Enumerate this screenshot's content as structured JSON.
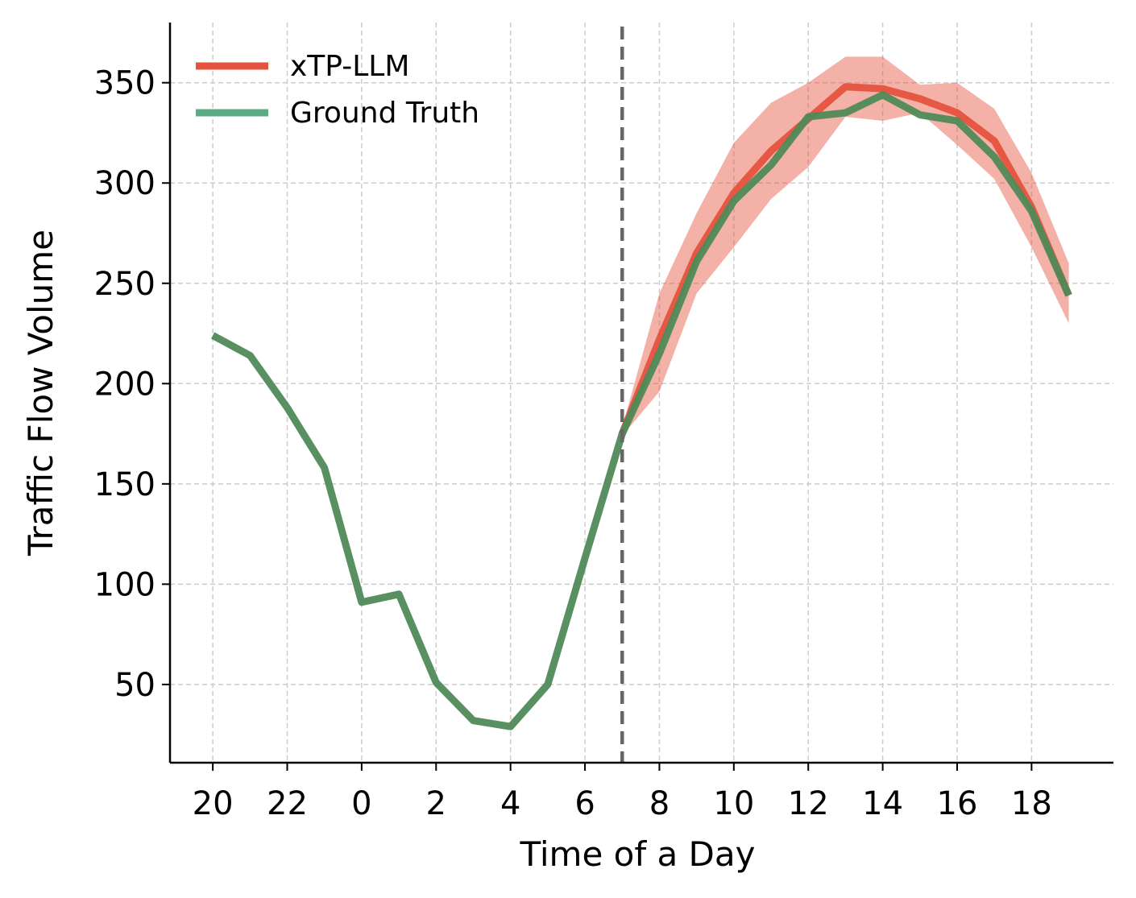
{
  "chart_data": {
    "type": "line",
    "title": "",
    "xlabel": "Time of a Day",
    "ylabel": "Traffic Flow Volume",
    "x": [
      0,
      1,
      2,
      3,
      4,
      5,
      6,
      7,
      8,
      9,
      10,
      11,
      12,
      13,
      14,
      15,
      16,
      17,
      18,
      19,
      20,
      21,
      22,
      23
    ],
    "x_ticks": [
      {
        "x": 0,
        "label": "20"
      },
      {
        "x": 2,
        "label": "22"
      },
      {
        "x": 4,
        "label": "0"
      },
      {
        "x": 6,
        "label": "2"
      },
      {
        "x": 8,
        "label": "4"
      },
      {
        "x": 10,
        "label": "6"
      },
      {
        "x": 12,
        "label": "8"
      },
      {
        "x": 14,
        "label": "10"
      },
      {
        "x": 16,
        "label": "12"
      },
      {
        "x": 18,
        "label": "14"
      },
      {
        "x": 20,
        "label": "16"
      },
      {
        "x": 22,
        "label": "18"
      }
    ],
    "y_ticks": [
      50,
      100,
      150,
      200,
      250,
      300,
      350
    ],
    "xlim": [
      -1.15,
      24.2
    ],
    "ylim": [
      11,
      380
    ],
    "grid": true,
    "legend_position": "top-left",
    "forecast_start_x": 11,
    "series": [
      {
        "name": "xTP-LLM",
        "color": "#e5533d",
        "x": [
          11,
          12,
          13,
          14,
          15,
          16,
          17,
          18,
          19,
          20,
          21,
          22,
          23
        ],
        "values": [
          175,
          222,
          265,
          295,
          316,
          332,
          348,
          347,
          342,
          335,
          321,
          288,
          244
        ],
        "band_lower": [
          174,
          196,
          245,
          268,
          292,
          308,
          333,
          331,
          335,
          319,
          302,
          268,
          230
        ],
        "band_upper": [
          178,
          245,
          285,
          320,
          340,
          350,
          363,
          363,
          349,
          350,
          337,
          305,
          260
        ]
      },
      {
        "name": "Ground Truth",
        "color": "#4f8a59",
        "legend_color": "#5cab84",
        "x": [
          0,
          1,
          2,
          3,
          4,
          5,
          6,
          7,
          8,
          9,
          10,
          11,
          12,
          13,
          14,
          15,
          16,
          17,
          18,
          19,
          20,
          21,
          22,
          23
        ],
        "values": [
          224,
          214,
          188,
          158,
          91,
          95,
          51,
          32,
          29,
          50,
          113,
          175,
          215,
          261,
          291,
          309,
          333,
          335,
          344,
          334,
          331,
          313,
          286,
          244
        ]
      }
    ]
  }
}
